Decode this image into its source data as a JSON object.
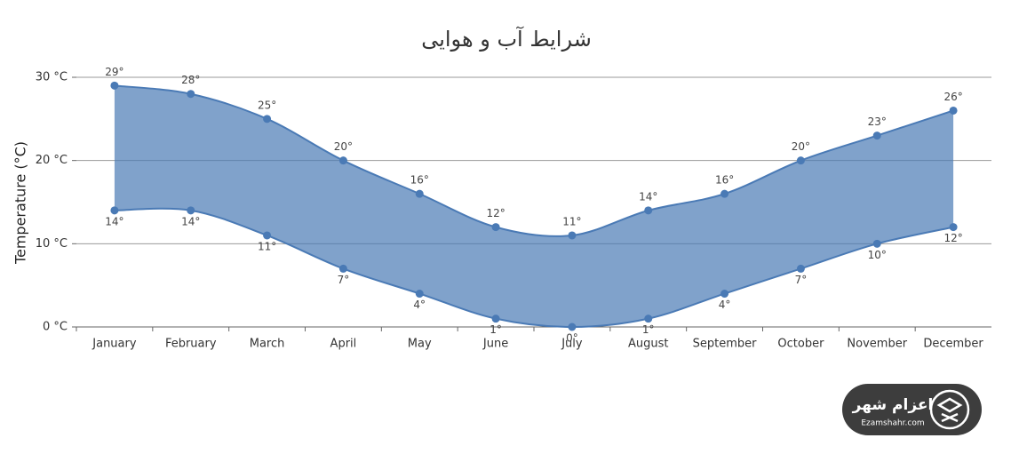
{
  "chart_data": {
    "type": "arearange",
    "title": "شرایط آب و هوایی",
    "y_label": "Temperature (°C)",
    "categories": [
      "January",
      "February",
      "March",
      "April",
      "May",
      "June",
      "July",
      "August",
      "September",
      "October",
      "November",
      "December"
    ],
    "series": [
      {
        "values": [
          29,
          28,
          25,
          20,
          16,
          12,
          11,
          14,
          16,
          20,
          23,
          26
        ],
        "value_labels": [
          "29°",
          "28°",
          "25°",
          "20°",
          "16°",
          "12°",
          "11°",
          "14°",
          "16°",
          "20°",
          "23°",
          "26°"
        ]
      },
      {
        "values": [
          14,
          14,
          11,
          7,
          4,
          1,
          0,
          1,
          4,
          7,
          10,
          12
        ],
        "value_labels": [
          "14°",
          "14°",
          "11°",
          "7°",
          "4°",
          "1°",
          "0°",
          "1°",
          "4°",
          "7°",
          "10°",
          "12°"
        ]
      }
    ],
    "color": "#4a7ab5",
    "ylim": [
      0,
      30
    ],
    "yticks": [
      {
        "value": 0,
        "label": "0 °C"
      },
      {
        "value": 10,
        "label": "10 °C"
      },
      {
        "value": 20,
        "label": "20 °C"
      },
      {
        "value": 30,
        "label": "30 °C"
      }
    ],
    "grid": true
  },
  "watermark": {
    "name": "اعزام شهر",
    "url": "Ezamshahr.com"
  }
}
